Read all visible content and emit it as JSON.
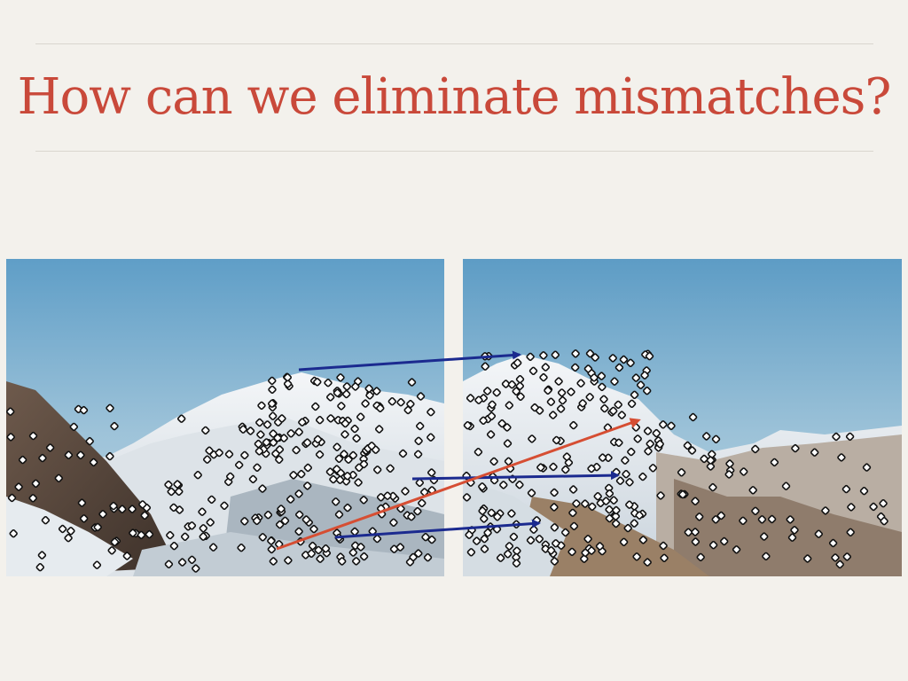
{
  "slide": {
    "title": "How can we eliminate mismatches?"
  },
  "figure": {
    "left_image": {
      "name": "mountain-photo-view-1"
    },
    "right_image": {
      "name": "mountain-photo-view-2"
    },
    "match_arrows": [
      {
        "kind": "correct",
        "color": "#1b2a8f"
      },
      {
        "kind": "correct",
        "color": "#1b2a8f"
      },
      {
        "kind": "correct",
        "color": "#1b2a8f"
      },
      {
        "kind": "mismatch",
        "color": "#d64e33"
      }
    ],
    "keypoint_marker": {
      "fill": "#ffffff",
      "stroke": "#111111"
    }
  }
}
